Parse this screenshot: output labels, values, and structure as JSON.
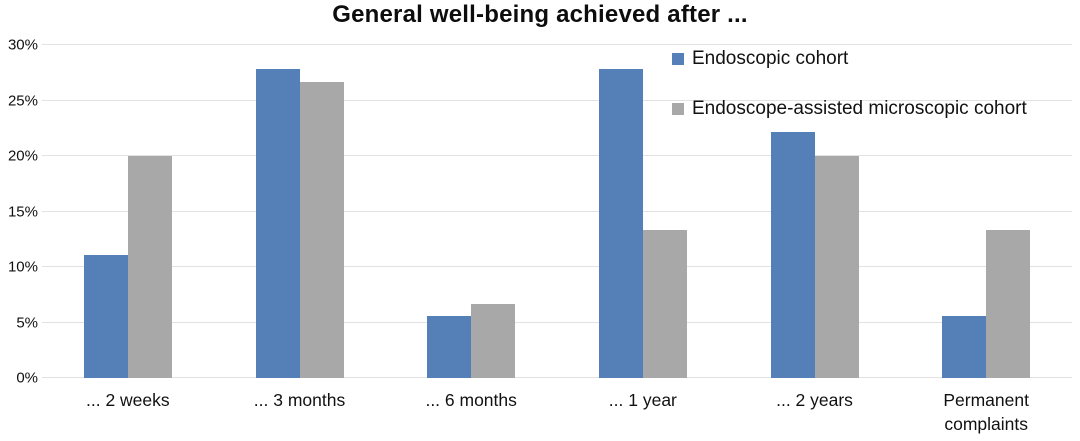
{
  "title": "General well-being achieved after ...",
  "colors": {
    "series_blue": "#5580b7",
    "series_gray": "#a8a8a8",
    "gridline": "#e2e2e2",
    "text": "#111111"
  },
  "chart_data": {
    "type": "bar",
    "title": "General well-being achieved after ...",
    "xlabel": "",
    "ylabel": "",
    "categories": [
      "... 2 weeks",
      "... 3 months",
      "... 6 months",
      "... 1 year",
      "... 2 years",
      "Permanent complaints"
    ],
    "series": [
      {
        "name": "Endoscopic cohort",
        "color": "#5580b7",
        "values": [
          11.1,
          27.8,
          5.6,
          27.8,
          22.2,
          5.6
        ]
      },
      {
        "name": "Endoscope-assisted microscopic cohort",
        "color": "#a8a8a8",
        "values": [
          20.0,
          26.7,
          6.7,
          13.3,
          20.0,
          13.3
        ]
      }
    ],
    "ylim": [
      0,
      30
    ],
    "ytick_values": [
      0,
      5,
      10,
      15,
      20,
      25,
      30
    ],
    "ytick_labels": [
      "0%",
      "5%",
      "10%",
      "15%",
      "20%",
      "25%",
      "30%"
    ],
    "grid": true,
    "legend_position": "top-right"
  }
}
